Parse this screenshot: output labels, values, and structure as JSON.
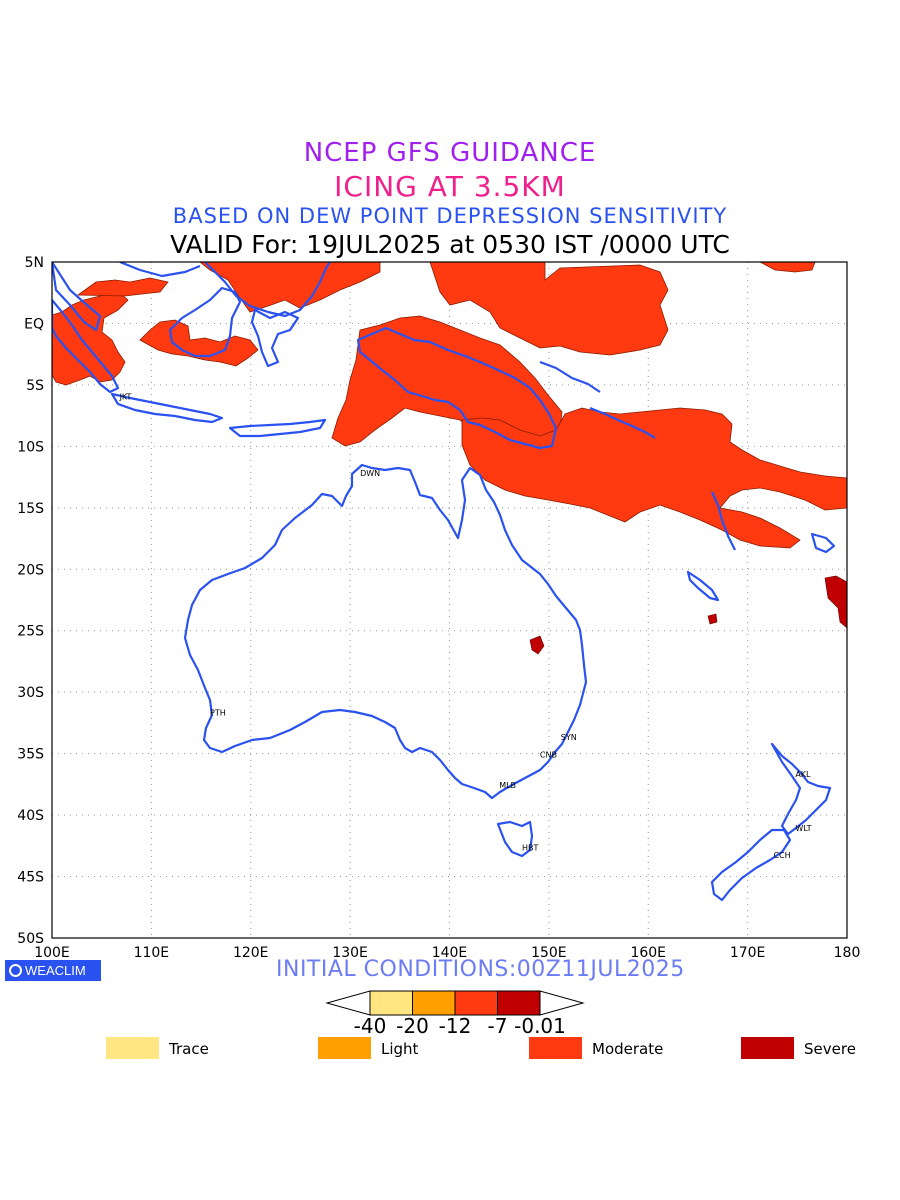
{
  "titles": {
    "line1": "NCEP GFS GUIDANCE",
    "line2": "ICING AT 3.5KM",
    "line3": "BASED ON DEW POINT DEPRESSION SENSITIVITY",
    "line4": "VALID For: 19JUL2025 at 0530 IST /0000 UTC"
  },
  "map": {
    "lon_labels": [
      "100E",
      "110E",
      "120E",
      "130E",
      "140E",
      "150E",
      "160E",
      "170E",
      "180"
    ],
    "lat_labels": [
      "5N",
      "EQ",
      "5S",
      "10S",
      "15S",
      "20S",
      "25S",
      "30S",
      "35S",
      "40S",
      "45S",
      "50S"
    ],
    "cities": [
      {
        "code": "JKT",
        "lon": 106.8,
        "lat": -6.2
      },
      {
        "code": "DWN",
        "lon": 131.0,
        "lat": -12.4
      },
      {
        "code": "PTH",
        "lon": 115.9,
        "lat": -31.9
      },
      {
        "code": "SYN",
        "lon": 151.2,
        "lat": -33.9
      },
      {
        "code": "CNB",
        "lon": 149.1,
        "lat": -35.3
      },
      {
        "code": "MLB",
        "lon": 145.0,
        "lat": -37.8
      },
      {
        "code": "HBT",
        "lon": 147.3,
        "lat": -42.9
      },
      {
        "code": "AKL",
        "lon": 174.8,
        "lat": -36.9
      },
      {
        "code": "WLT",
        "lon": 174.8,
        "lat": -41.3
      },
      {
        "code": "CCH",
        "lon": 172.6,
        "lat": -43.5
      }
    ],
    "colors": {
      "coast": "#2a52f0",
      "moderate": "#ff3a10",
      "severe": "#c00000"
    }
  },
  "footer": {
    "logo_text": "WEACLIM",
    "initial_conditions": "INITIAL CONDITIONS:00Z11JUL2025"
  },
  "colorbar": {
    "ticks": [
      "-40",
      "-20",
      "-12",
      "-7",
      "-0.01"
    ],
    "colors": [
      "#ffe680",
      "#ffa000",
      "#ff3a10",
      "#c00000"
    ]
  },
  "legend": [
    {
      "label": "Trace",
      "color": "#ffe680"
    },
    {
      "label": "Light",
      "color": "#ffa000"
    },
    {
      "label": "Moderate",
      "color": "#ff3a10"
    },
    {
      "label": "Severe",
      "color": "#c00000"
    }
  ]
}
